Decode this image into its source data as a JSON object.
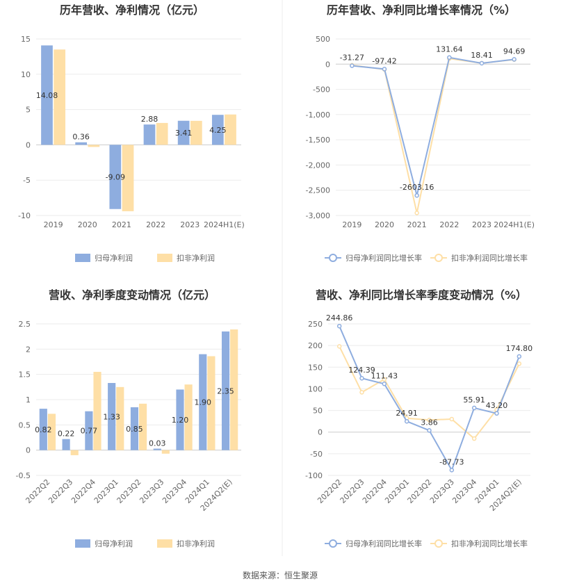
{
  "source_label": "数据来源：恒生聚源",
  "colors": {
    "series_a": "#8EADDF",
    "series_b": "#FEDFA6",
    "grid": "#EBEBEB",
    "axis": "#999999",
    "divider": "#EEEEEE"
  },
  "chart_data": [
    {
      "type": "bar",
      "title": "历年营收、净利情况（亿元）",
      "categories": [
        "2019",
        "2020",
        "2021",
        "2022",
        "2023",
        "2024H1(E)"
      ],
      "yticks": [
        "15",
        "10",
        "5",
        "0",
        "-5",
        "-10"
      ],
      "ylim": [
        -10,
        15
      ],
      "ytick_values": [
        15,
        10,
        5,
        0,
        -5,
        -10
      ],
      "series": [
        {
          "name": "归母净利润",
          "values": [
            14.08,
            0.36,
            -9.09,
            2.88,
            3.41,
            4.25
          ],
          "labels": [
            "14.08",
            "0.36",
            "-9.09",
            "2.88",
            "3.41",
            "4.25"
          ]
        },
        {
          "name": "扣非净利润",
          "values": [
            13.5,
            -0.3,
            -9.4,
            3.1,
            3.4,
            4.3
          ]
        }
      ],
      "legend": "bottom"
    },
    {
      "type": "line",
      "title": "历年营收、净利同比增长率情况（%）",
      "categories": [
        "2019",
        "2020",
        "2021",
        "2022",
        "2023",
        "2024H1(E)"
      ],
      "yticks": [
        "500",
        "0",
        "-500",
        "-1,000",
        "-1,500",
        "-2,000",
        "-2,500",
        "-3,000"
      ],
      "ylim": [
        -3000,
        500
      ],
      "ytick_values": [
        500,
        0,
        -500,
        -1000,
        -1500,
        -2000,
        -2500,
        -3000
      ],
      "series": [
        {
          "name": "归母净利润同比增长率",
          "values": [
            -31.27,
            -97.42,
            -2603.16,
            131.64,
            18.41,
            94.69
          ],
          "labels": [
            "-31.27",
            "-97.42",
            "-2603.16",
            "131.64",
            "18.41",
            "94.69"
          ]
        },
        {
          "name": "扣非净利润同比增长率",
          "values": [
            -20,
            -105,
            -2950,
            110,
            20,
            90
          ]
        }
      ],
      "legend": "bottom"
    },
    {
      "type": "bar",
      "title": "营收、净利季度变动情况（亿元）",
      "categories": [
        "2022Q2",
        "2022Q3",
        "2022Q4",
        "2023Q1",
        "2023Q2",
        "2023Q3",
        "2023Q4",
        "2024Q1",
        "2024Q2(E)"
      ],
      "yticks": [
        "2.5",
        "2",
        "1.5",
        "1",
        "0.5",
        "0",
        "-0.5"
      ],
      "ylim": [
        -0.5,
        2.5
      ],
      "ytick_values": [
        2.5,
        2,
        1.5,
        1,
        0.5,
        0,
        -0.5
      ],
      "series": [
        {
          "name": "归母净利润",
          "values": [
            0.82,
            0.22,
            0.77,
            1.33,
            0.85,
            0.03,
            1.2,
            1.9,
            2.35
          ],
          "labels": [
            "0.82",
            "0.22",
            "0.77",
            "1.33",
            "0.85",
            "0.03",
            "1.20",
            "1.90",
            "2.35"
          ]
        },
        {
          "name": "扣非净利润",
          "values": [
            0.72,
            -0.1,
            1.55,
            1.25,
            0.92,
            -0.07,
            1.3,
            1.86,
            2.39
          ]
        }
      ],
      "legend": "bottom"
    },
    {
      "type": "line",
      "title": "营收、净利同比增长率季度变动情况（%）",
      "categories": [
        "2022Q2",
        "2022Q3",
        "2022Q4",
        "2023Q1",
        "2023Q2",
        "2023Q3",
        "2023Q4",
        "2024Q1",
        "2024Q2(E)"
      ],
      "yticks": [
        "250",
        "200",
        "150",
        "100",
        "50",
        "0",
        "-50",
        "-100"
      ],
      "ylim": [
        -100,
        250
      ],
      "ytick_values": [
        250,
        200,
        150,
        100,
        50,
        0,
        -50,
        -100
      ],
      "series": [
        {
          "name": "归母净利润同比增长率",
          "values": [
            244.86,
            124.39,
            111.43,
            24.91,
            3.86,
            -87.73,
            55.91,
            43.2,
            174.8
          ],
          "labels": [
            "244.86",
            "124.39",
            "111.43",
            "24.91",
            "3.86",
            "-87.73",
            "55.91",
            "43.20",
            "174.80"
          ]
        },
        {
          "name": "扣非净利润同比增长率",
          "values": [
            198,
            92,
            122,
            32,
            28,
            30,
            -15,
            52,
            158
          ]
        }
      ],
      "legend": "bottom"
    }
  ]
}
